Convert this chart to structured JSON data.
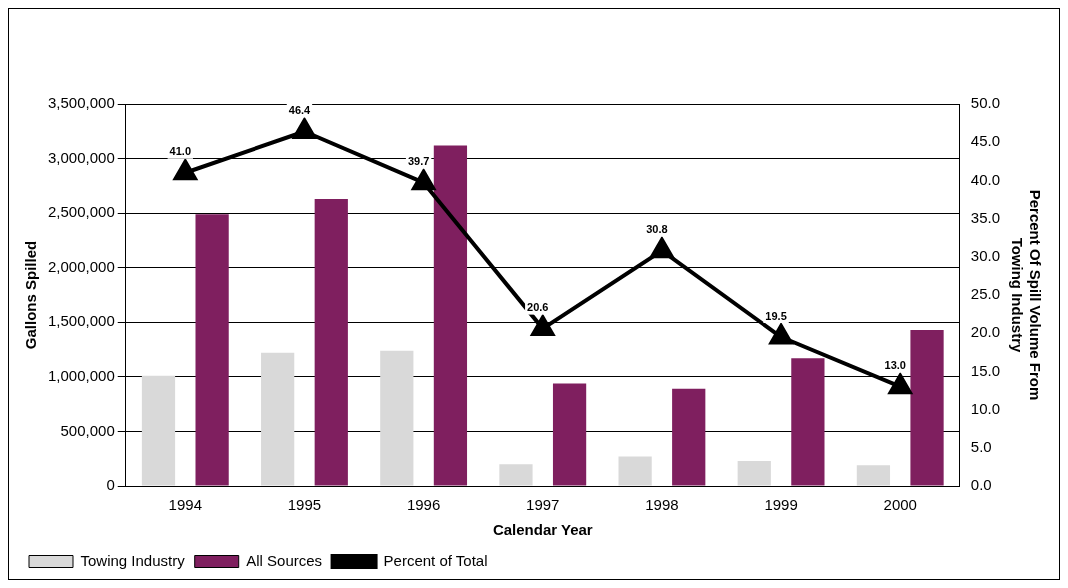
{
  "chart_data": {
    "type": "bar",
    "xlabel": "Calendar Year",
    "ylabel": "Gallons Spilled",
    "y2label": "Percent Of Spill Volume From Towing Industry",
    "categories": [
      "1994",
      "1995",
      "1996",
      "1997",
      "1998",
      "1999",
      "2000"
    ],
    "series": [
      {
        "name": "Towing Industry",
        "color": "#d9d9d9",
        "values": [
          1010000,
          1220000,
          1240000,
          200000,
          270000,
          230000,
          190000
        ]
      },
      {
        "name": "All Sources",
        "color": "#7f1f5f",
        "values": [
          2490000,
          2630000,
          3120000,
          940000,
          890000,
          1170000,
          1430000
        ]
      },
      {
        "name": "Percent of Total",
        "type": "line",
        "axis": "y2",
        "color": "#000000",
        "marker": "triangle",
        "line_style": "solid",
        "values": [
          41.0,
          46.4,
          39.7,
          20.6,
          30.8,
          19.5,
          13.0
        ],
        "value_labels": [
          "41.0",
          "46.4",
          "39.7",
          "20.6",
          "30.8",
          "19.5",
          "13.0"
        ]
      }
    ],
    "ylim": [
      0,
      3500000
    ],
    "yticks": [
      {
        "value": 0,
        "label": "0"
      },
      {
        "value": 500000,
        "label": "500,000"
      },
      {
        "value": 1000000,
        "label": "1,000,000"
      },
      {
        "value": 1500000,
        "label": "1,500,000"
      },
      {
        "value": 2000000,
        "label": "2,000,000"
      },
      {
        "value": 2500000,
        "label": "2,500,000"
      },
      {
        "value": 3000000,
        "label": "3,000,000"
      },
      {
        "value": 3500000,
        "label": "3,500,000"
      }
    ],
    "y2lim": [
      0,
      50
    ],
    "y2ticks": [
      {
        "value": 0,
        "label": "0.0"
      },
      {
        "value": 5,
        "label": "5.0"
      },
      {
        "value": 10,
        "label": "10.0"
      },
      {
        "value": 15,
        "label": "15.0"
      },
      {
        "value": 20,
        "label": "20.0"
      },
      {
        "value": 25,
        "label": "25.0"
      },
      {
        "value": 30,
        "label": "30.0"
      },
      {
        "value": 35,
        "label": "35.0"
      },
      {
        "value": 40,
        "label": "40.0"
      },
      {
        "value": 45,
        "label": "45.0"
      },
      {
        "value": 50,
        "label": "50.0"
      }
    ],
    "grid": "y",
    "legend": "bottom left"
  }
}
